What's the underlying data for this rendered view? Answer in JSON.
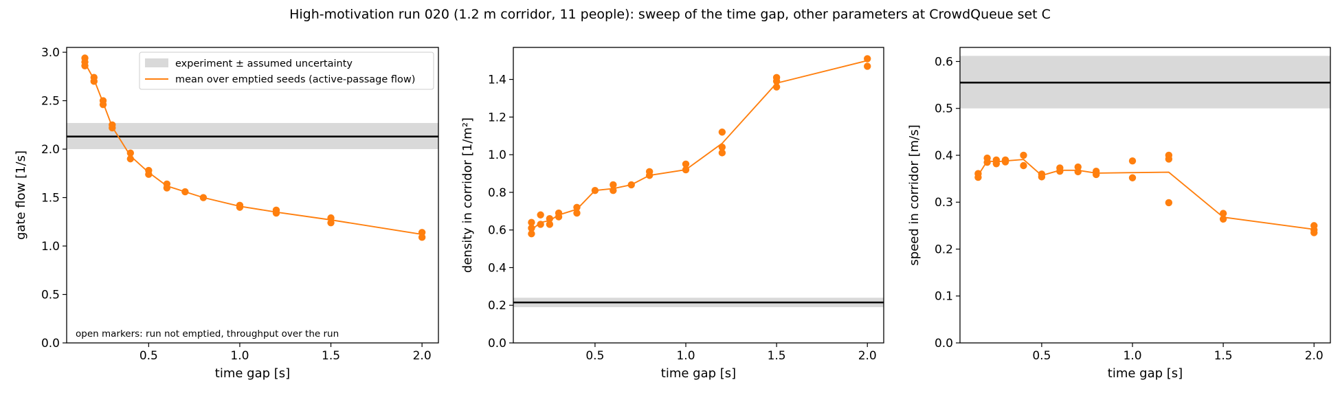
{
  "title": "High-motivation run 020 (1.2 m corridor, 11 people): sweep of the time gap, other parameters at CrowdQueue set C",
  "colors": {
    "series": "#ff7f0e",
    "reference": "#000000",
    "band": "#d9d9d9"
  },
  "chart_data": [
    {
      "type": "line",
      "xlabel": "time gap [s]",
      "ylabel": "gate flow [1/s]",
      "xlim": [
        0.05,
        2.09
      ],
      "ylim": [
        0,
        3.05
      ],
      "xticks": [
        0.5,
        1.0,
        1.5,
        2.0
      ],
      "xtick_labels": [
        "0.5",
        "1.0",
        "1.5",
        "2.0"
      ],
      "yticks": [
        0.0,
        0.5,
        1.0,
        1.5,
        2.0,
        2.5,
        3.0
      ],
      "ytick_labels": [
        "0.0",
        "0.5",
        "1.0",
        "1.5",
        "2.0",
        "2.5",
        "3.0"
      ],
      "reference": {
        "value": 2.13,
        "band": [
          2.0,
          2.27
        ]
      },
      "legend": {
        "location": "upper-right",
        "entries": [
          "experiment ± assumed uncertainty",
          "mean over emptied seeds (active-passage flow)"
        ]
      },
      "annotation": "open markers: run not emptied, throughput over the run",
      "mean_line": {
        "x": [
          0.15,
          0.2,
          0.25,
          0.3,
          0.4,
          0.5,
          0.6,
          0.7,
          0.8,
          1.0,
          1.2,
          1.5,
          2.0
        ],
        "y": [
          2.89,
          2.72,
          2.48,
          2.23,
          1.93,
          1.76,
          1.62,
          1.56,
          1.5,
          1.41,
          1.35,
          1.27,
          1.12
        ]
      },
      "points": {
        "x": [
          0.15,
          0.15,
          0.15,
          0.2,
          0.2,
          0.25,
          0.25,
          0.3,
          0.3,
          0.4,
          0.4,
          0.5,
          0.5,
          0.6,
          0.6,
          0.7,
          0.8,
          1.0,
          1.0,
          1.2,
          1.2,
          1.5,
          1.5,
          2.0,
          2.0
        ],
        "y": [
          2.94,
          2.9,
          2.86,
          2.74,
          2.7,
          2.5,
          2.46,
          2.25,
          2.22,
          1.96,
          1.9,
          1.78,
          1.74,
          1.64,
          1.6,
          1.56,
          1.5,
          1.42,
          1.4,
          1.37,
          1.34,
          1.29,
          1.24,
          1.14,
          1.09
        ]
      }
    },
    {
      "type": "line",
      "xlabel": "time gap [s]",
      "ylabel": "density in corridor [1/m²]",
      "xlim": [
        0.05,
        2.09
      ],
      "ylim": [
        0,
        1.57
      ],
      "xticks": [
        0.5,
        1.0,
        1.5,
        2.0
      ],
      "xtick_labels": [
        "0.5",
        "1.0",
        "1.5",
        "2.0"
      ],
      "yticks": [
        0.0,
        0.2,
        0.4,
        0.6,
        0.8,
        1.0,
        1.2,
        1.4
      ],
      "ytick_labels": [
        "0.0",
        "0.2",
        "0.4",
        "0.6",
        "0.8",
        "1.0",
        "1.2",
        "1.4"
      ],
      "reference": {
        "value": 0.215,
        "band": [
          0.19,
          0.24
        ]
      },
      "mean_line": {
        "x": [
          0.15,
          0.2,
          0.25,
          0.3,
          0.4,
          0.5,
          0.6,
          0.7,
          0.8,
          1.0,
          1.2,
          1.5,
          2.0
        ],
        "y": [
          0.6,
          0.64,
          0.65,
          0.68,
          0.71,
          0.81,
          0.82,
          0.84,
          0.89,
          0.92,
          1.06,
          1.38,
          1.5
        ]
      },
      "points": {
        "x": [
          0.15,
          0.15,
          0.15,
          0.2,
          0.2,
          0.25,
          0.25,
          0.3,
          0.3,
          0.4,
          0.4,
          0.5,
          0.6,
          0.6,
          0.7,
          0.8,
          0.8,
          1.0,
          1.0,
          1.2,
          1.2,
          1.2,
          1.5,
          1.5,
          1.5,
          2.0,
          2.0
        ],
        "y": [
          0.64,
          0.61,
          0.58,
          0.68,
          0.63,
          0.66,
          0.63,
          0.69,
          0.67,
          0.72,
          0.69,
          0.81,
          0.84,
          0.81,
          0.84,
          0.91,
          0.89,
          0.95,
          0.92,
          1.12,
          1.04,
          1.01,
          1.41,
          1.39,
          1.36,
          1.51,
          1.47
        ]
      }
    },
    {
      "type": "line",
      "xlabel": "time gap [s]",
      "ylabel": "speed in corridor [m/s]",
      "xlim": [
        0.05,
        2.09
      ],
      "ylim": [
        0,
        0.63
      ],
      "xticks": [
        0.5,
        1.0,
        1.5,
        2.0
      ],
      "xtick_labels": [
        "0.5",
        "1.0",
        "1.5",
        "2.0"
      ],
      "yticks": [
        0.0,
        0.1,
        0.2,
        0.3,
        0.4,
        0.5,
        0.6
      ],
      "ytick_labels": [
        "0.0",
        "0.1",
        "0.2",
        "0.3",
        "0.4",
        "0.5",
        "0.6"
      ],
      "reference": {
        "value": 0.555,
        "band": [
          0.5,
          0.612
        ]
      },
      "mean_line": {
        "x": [
          0.15,
          0.2,
          0.25,
          0.3,
          0.4,
          0.5,
          0.6,
          0.7,
          0.8,
          1.0,
          1.2,
          1.5,
          2.0
        ],
        "y": [
          0.357,
          0.388,
          0.386,
          0.388,
          0.391,
          0.357,
          0.368,
          0.368,
          0.362,
          0.363,
          0.364,
          0.268,
          0.242
        ]
      },
      "points": {
        "x": [
          0.15,
          0.15,
          0.2,
          0.2,
          0.25,
          0.25,
          0.3,
          0.3,
          0.4,
          0.4,
          0.5,
          0.5,
          0.6,
          0.6,
          0.7,
          0.7,
          0.8,
          0.8,
          1.0,
          1.0,
          1.2,
          1.2,
          1.2,
          1.5,
          1.5,
          2.0,
          2.0,
          2.0
        ],
        "y": [
          0.361,
          0.353,
          0.394,
          0.385,
          0.39,
          0.382,
          0.39,
          0.386,
          0.4,
          0.378,
          0.36,
          0.354,
          0.373,
          0.366,
          0.375,
          0.365,
          0.366,
          0.359,
          0.388,
          0.352,
          0.4,
          0.392,
          0.299,
          0.276,
          0.264,
          0.25,
          0.241,
          0.235
        ]
      }
    }
  ]
}
